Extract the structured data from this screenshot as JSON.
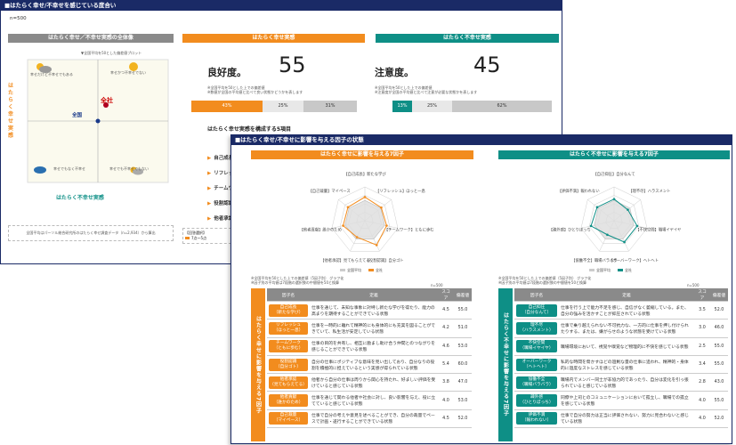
{
  "slide1": {
    "title": "■はたらく幸せ/不幸せを感じている度合い",
    "n_label": "n=500",
    "matrix": {
      "header": "はたらく幸せ／不幸せ実感の全体像",
      "note_top": "▼全国平均を50とした偏差値プロット",
      "y_label": "はたらく幸せ実感",
      "x_label": "はたらく不幸せ実感",
      "q_top_left": "幸せだけど不幸せでもある",
      "q_top_right": "幸せかつ不幸せでない",
      "q_bottom_left": "幸せでもなく不幸せ",
      "q_bottom_right": "幸せでも不幸せでもない",
      "point_company": "全社",
      "point_national": "全国",
      "footnote": "全国平均はパーソル総合研究所のはたらく幸せ調査データ（n=2,934）から算出"
    },
    "happy": {
      "header": "はたらく幸せ実感",
      "label": "良好度。",
      "score": "55",
      "note1": "※全国平均を50とした上での偏差値",
      "note2": "※数値が全国の平均値と比べて良い状態かどうかを表します",
      "bar": [
        "43%",
        "25%",
        "31%"
      ],
      "factors_title": "はたらく幸せ実感を構成する5項目",
      "factors": [
        "自己成長",
        "リフレッシュ",
        "チームワーク",
        "役割認識",
        "他者承認"
      ],
      "legend_title": "【回答選択】",
      "legend_item": "7点〜5点"
    },
    "unhappy": {
      "header": "はたらく不幸せ実感",
      "label": "注意度。",
      "score": "45",
      "note1": "※全国平均を50とした上での偏差値",
      "note2": "※注意度が全国の平均値と比べて注意が必要な状態かを表します",
      "bar": [
        "13%",
        "25%",
        "62%"
      ]
    }
  },
  "slide2": {
    "title": "■はたらく幸せ/不幸せに影響を与える因子の状態",
    "left": {
      "header": "はたらく幸せに影響を与える7因子",
      "vertical": "はたらく幸せに影響を与える7因子",
      "axes": [
        "【自己成長】新たな学び",
        "【リフレッシュ】ほっと一息",
        "【チームワーク】ともに歩む",
        "【役割認識】自分ゴト",
        "【他者承認】見てもらえてる",
        "【他者貢献】誰かのため",
        "【自己裁量】マイペース"
      ],
      "legend": [
        "全国平均",
        "全社"
      ],
      "note1": "※全国平均を50とした上での偏差値（5因子別） グラフ化",
      "note2": "※因子別の平均値は7段階の選択肢の中間値を50と換算",
      "n_label": "n=500",
      "col_headers": [
        "因子名",
        "定義",
        "スコア",
        "偏差値"
      ],
      "rows": [
        {
          "tag": "自己成長",
          "sub": "（新たな学び）",
          "def": "仕事を通じて、未知な事象に対峙し新たな学びを得たり、能力の高まりを期待することができている状態",
          "score": "4.5",
          "dev": "55.0"
        },
        {
          "tag": "リフレッシュ",
          "sub": "（ほっと一息）",
          "def": "仕事を一時的に離れて精神的にも身体的にも充実を図ることができていて、私生活が安定している状態",
          "score": "4.2",
          "dev": "51.0"
        },
        {
          "tag": "チームワーク",
          "sub": "（ともに歩む）",
          "def": "仕事の目的を共有し、相互に励まし助け合う仲間とのつながりを感じることができている状態",
          "score": "4.6",
          "dev": "53.0"
        },
        {
          "tag": "役割認識",
          "sub": "（自分ゴト）",
          "def": "自分の仕事にポジティブな意味を見い出しており、自分なりの役割を積極的に担えているという実感が得られている状態",
          "score": "5.4",
          "dev": "60.0"
        },
        {
          "tag": "他者承認",
          "sub": "（見てもらえてる）",
          "def": "他者から自分の仕事は周りから関心を持たれ、好ましい評価を受けていると感じている状態",
          "score": "3.8",
          "dev": "47.0"
        },
        {
          "tag": "他者貢献",
          "sub": "（誰かのため）",
          "def": "仕事を通じて関わる他者や社会に対し、良い影響を与え、役に立てていると感じている状態",
          "score": "4.0",
          "dev": "53.0"
        },
        {
          "tag": "自己裁量",
          "sub": "（マイペース）",
          "def": "仕事で自分の考えや意見を述べることができ、自分の裁量でペースで計画・遂行することができている状態",
          "score": "4.5",
          "dev": "52.0"
        }
      ]
    },
    "right": {
      "header": "はたらく不幸せに影響を与える7因子",
      "vertical": "はたらく不幸せに影響を与える7因子",
      "axes": [
        "【自己抑圧】自分なんて",
        "【理不尽】ハラスメント",
        "【不快空間】職場イヤイヤ",
        "【オーバーワーク】ヘトヘト",
        "【協働不全】職場バラバラ",
        "【疎外感】ひとりぼっち",
        "【評価不満】報われない"
      ],
      "legend": [
        "全国平均",
        "全社"
      ],
      "note1": "※全国平均を50とした上での偏差値（5因子別） グラフ化",
      "note2": "※因子別の平均値は7段階の選択肢の中間値を50と換算",
      "n_label": "n=500",
      "col_headers": [
        "因子名",
        "定義",
        "スコア",
        "偏差値"
      ],
      "rows": [
        {
          "tag": "自己抑圧",
          "sub": "（自分なんて）",
          "def": "仕事を行う上で能力不足を感じ、自信がなく萎縮している。また、自分の強みを活かすことが抑圧されている状態",
          "score": "3.5",
          "dev": "52.0"
        },
        {
          "tag": "理不尽",
          "sub": "（ハラスメント）",
          "def": "仕事で乗り越えられない不可抗力な、一方的に仕事を押し付けられたりする、または、嫌がらせのような状態を受けている状態",
          "score": "3.0",
          "dev": "46.0"
        },
        {
          "tag": "不快空間",
          "sub": "（職場イヤイヤ）",
          "def": "職場環境において、視覚や嗅覚など物理的に不快を感じている状態",
          "score": "2.5",
          "dev": "55.0"
        },
        {
          "tag": "オーバーワーク",
          "sub": "（ヘトヘト）",
          "def": "私的な時間を脅かすほどの過剰な量の仕事に追われ、精神的・身体的に過度なストレスを感じている状態",
          "score": "3.4",
          "dev": "55.0"
        },
        {
          "tag": "協働不全",
          "sub": "（職場バラバラ）",
          "def": "職場内でメンバー同士が非協力的であったり、自分は変化を引っ張られていると感じている状態",
          "score": "2.8",
          "dev": "43.0"
        },
        {
          "tag": "疎外感",
          "sub": "（ひとりぼっち）",
          "def": "同僚や上司とのコミュニケーションにおいて孤立し、職場での孤立を感じている状態",
          "score": "4.0",
          "dev": "55.0"
        },
        {
          "tag": "評価不満",
          "sub": "（報われない）",
          "def": "仕事で自分の努力は正当に評価されない、努力に見合わないと感じている状態",
          "score": "4.0",
          "dev": "52.0"
        }
      ]
    }
  },
  "colors": {
    "navy": "#1a2a66",
    "orange": "#f28c1e",
    "teal": "#0e8f86",
    "gray_header": "#8a8a8a"
  }
}
